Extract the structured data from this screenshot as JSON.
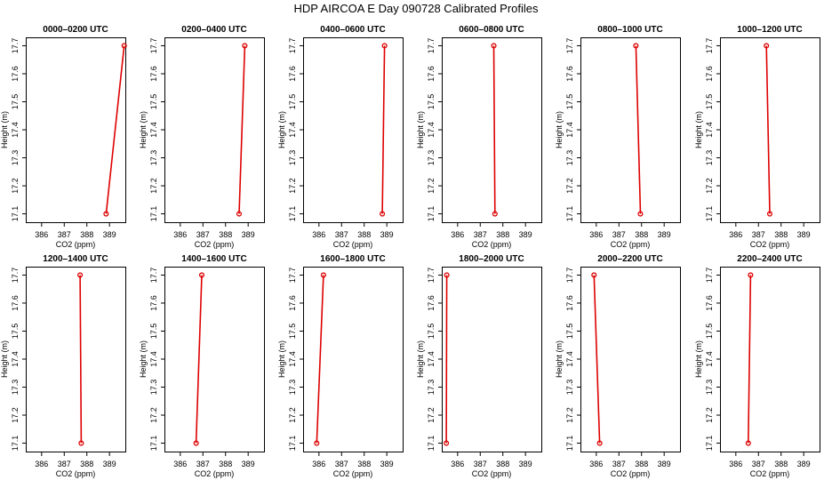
{
  "figure": {
    "title": "HDP AIRCOA E  Day 090728  Calibrated Profiles"
  },
  "style": {
    "line_color": "#dd0000",
    "point_color": "#dd0000",
    "frame_color": "#000000"
  },
  "chart_data": [
    {
      "type": "line",
      "title": "0000–0200 UTC",
      "xlabel": "CO2 (ppm)",
      "ylabel": "Height (m)",
      "xlim": [
        385.3,
        389.7
      ],
      "ylim": [
        17.07,
        17.73
      ],
      "xticks": [
        386,
        387,
        388,
        389
      ],
      "yticks": [
        17.1,
        17.2,
        17.3,
        17.4,
        17.5,
        17.6,
        17.7
      ],
      "x": [
        388.85,
        389.65
      ],
      "y": [
        17.1,
        17.7
      ]
    },
    {
      "type": "line",
      "title": "0200–0400 UTC",
      "xlabel": "CO2 (ppm)",
      "ylabel": "Height (m)",
      "xlim": [
        385.3,
        389.7
      ],
      "ylim": [
        17.07,
        17.73
      ],
      "xticks": [
        386,
        387,
        388,
        389
      ],
      "yticks": [
        17.1,
        17.2,
        17.3,
        17.4,
        17.5,
        17.6,
        17.7
      ],
      "x": [
        388.6,
        388.85
      ],
      "y": [
        17.1,
        17.7
      ]
    },
    {
      "type": "line",
      "title": "0400–0600 UTC",
      "xlabel": "CO2 (ppm)",
      "ylabel": "Height (m)",
      "xlim": [
        385.3,
        389.7
      ],
      "ylim": [
        17.07,
        17.73
      ],
      "xticks": [
        386,
        387,
        388,
        389
      ],
      "yticks": [
        17.1,
        17.2,
        17.3,
        17.4,
        17.5,
        17.6,
        17.7
      ],
      "x": [
        388.8,
        388.9
      ],
      "y": [
        17.1,
        17.7
      ]
    },
    {
      "type": "line",
      "title": "0600–0800 UTC",
      "xlabel": "CO2 (ppm)",
      "ylabel": "Height (m)",
      "xlim": [
        385.3,
        389.7
      ],
      "ylim": [
        17.07,
        17.73
      ],
      "xticks": [
        386,
        387,
        388,
        389
      ],
      "yticks": [
        17.1,
        17.2,
        17.3,
        17.4,
        17.5,
        17.6,
        17.7
      ],
      "x": [
        387.65,
        387.6
      ],
      "y": [
        17.1,
        17.7
      ]
    },
    {
      "type": "line",
      "title": "0800–1000 UTC",
      "xlabel": "CO2 (ppm)",
      "ylabel": "Height (m)",
      "xlim": [
        385.3,
        389.7
      ],
      "ylim": [
        17.07,
        17.73
      ],
      "xticks": [
        386,
        387,
        388,
        389
      ],
      "yticks": [
        17.1,
        17.2,
        17.3,
        17.4,
        17.5,
        17.6,
        17.7
      ],
      "x": [
        387.95,
        387.75
      ],
      "y": [
        17.1,
        17.7
      ]
    },
    {
      "type": "line",
      "title": "1000–1200 UTC",
      "xlabel": "CO2 (ppm)",
      "ylabel": "Height (m)",
      "xlim": [
        385.3,
        389.7
      ],
      "ylim": [
        17.07,
        17.73
      ],
      "xticks": [
        386,
        387,
        388,
        389
      ],
      "yticks": [
        17.1,
        17.2,
        17.3,
        17.4,
        17.5,
        17.6,
        17.7
      ],
      "x": [
        387.5,
        387.35
      ],
      "y": [
        17.1,
        17.7
      ]
    },
    {
      "type": "line",
      "title": "1200–1400 UTC",
      "xlabel": "CO2 (ppm)",
      "ylabel": "Height (m)",
      "xlim": [
        385.3,
        389.7
      ],
      "ylim": [
        17.07,
        17.73
      ],
      "xticks": [
        386,
        387,
        388,
        389
      ],
      "yticks": [
        17.1,
        17.2,
        17.3,
        17.4,
        17.5,
        17.6,
        17.7
      ],
      "x": [
        387.75,
        387.7
      ],
      "y": [
        17.1,
        17.7
      ]
    },
    {
      "type": "line",
      "title": "1400–1600 UTC",
      "xlabel": "CO2 (ppm)",
      "ylabel": "Height (m)",
      "xlim": [
        385.3,
        389.7
      ],
      "ylim": [
        17.07,
        17.73
      ],
      "xticks": [
        386,
        387,
        388,
        389
      ],
      "yticks": [
        17.1,
        17.2,
        17.3,
        17.4,
        17.5,
        17.6,
        17.7
      ],
      "x": [
        386.7,
        386.95
      ],
      "y": [
        17.1,
        17.7
      ]
    },
    {
      "type": "line",
      "title": "1600–1800 UTC",
      "xlabel": "CO2 (ppm)",
      "ylabel": "Height (m)",
      "xlim": [
        385.3,
        389.7
      ],
      "ylim": [
        17.07,
        17.73
      ],
      "xticks": [
        386,
        387,
        388,
        389
      ],
      "yticks": [
        17.1,
        17.2,
        17.3,
        17.4,
        17.5,
        17.6,
        17.7
      ],
      "x": [
        385.9,
        386.2
      ],
      "y": [
        17.1,
        17.7
      ]
    },
    {
      "type": "line",
      "title": "1800–2000 UTC",
      "xlabel": "CO2 (ppm)",
      "ylabel": "Height (m)",
      "xlim": [
        385.3,
        389.7
      ],
      "ylim": [
        17.07,
        17.73
      ],
      "xticks": [
        386,
        387,
        388,
        389
      ],
      "yticks": [
        17.1,
        17.2,
        17.3,
        17.4,
        17.5,
        17.6,
        17.7
      ],
      "x": [
        385.5,
        385.52
      ],
      "y": [
        17.1,
        17.7
      ]
    },
    {
      "type": "line",
      "title": "2000–2200 UTC",
      "xlabel": "CO2 (ppm)",
      "ylabel": "Height (m)",
      "xlim": [
        385.3,
        389.7
      ],
      "ylim": [
        17.07,
        17.73
      ],
      "xticks": [
        386,
        387,
        388,
        389
      ],
      "yticks": [
        17.1,
        17.2,
        17.3,
        17.4,
        17.5,
        17.6,
        17.7
      ],
      "x": [
        386.15,
        385.9
      ],
      "y": [
        17.1,
        17.7
      ]
    },
    {
      "type": "line",
      "title": "2200–2400 UTC",
      "xlabel": "CO2 (ppm)",
      "ylabel": "Height (m)",
      "xlim": [
        385.3,
        389.7
      ],
      "ylim": [
        17.07,
        17.73
      ],
      "xticks": [
        386,
        387,
        388,
        389
      ],
      "yticks": [
        17.1,
        17.2,
        17.3,
        17.4,
        17.5,
        17.6,
        17.7
      ],
      "x": [
        386.55,
        386.65
      ],
      "y": [
        17.1,
        17.7
      ]
    }
  ]
}
